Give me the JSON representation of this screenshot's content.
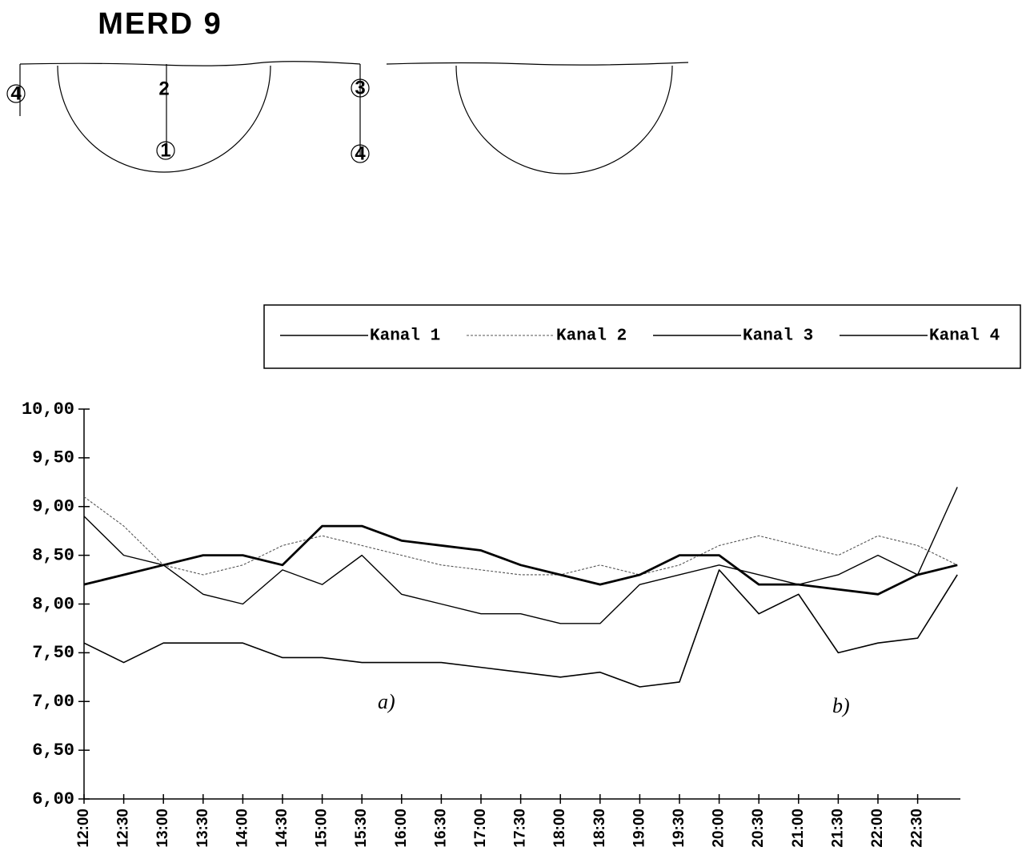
{
  "header": {
    "title": "MERD 9"
  },
  "diagram": {
    "labels": [
      "4",
      "2",
      "1",
      "3",
      "4"
    ]
  },
  "chart_data": {
    "type": "line",
    "categories": [
      "12:00",
      "12:30",
      "13:00",
      "13:30",
      "14:00",
      "14:30",
      "15:00",
      "15:30",
      "16:00",
      "16:30",
      "17:00",
      "17:30",
      "18:00",
      "18:30",
      "19:00",
      "19:30",
      "20:00",
      "20:30",
      "21:00",
      "21:30",
      "22:00",
      "22:30",
      null
    ],
    "series": [
      {
        "name": "Kanal 1",
        "color": "#000000",
        "values": [
          7.6,
          7.4,
          7.6,
          7.6,
          7.6,
          7.45,
          7.45,
          7.4,
          7.4,
          7.4,
          7.35,
          7.3,
          7.25,
          7.3,
          7.15,
          7.2,
          8.35,
          7.9,
          8.1,
          7.5,
          7.6,
          7.65,
          8.3
        ]
      },
      {
        "name": "Kanal 2",
        "color": "#555555",
        "values": [
          9.1,
          8.8,
          8.4,
          8.3,
          8.4,
          8.6,
          8.7,
          8.6,
          8.5,
          8.4,
          8.35,
          8.3,
          8.3,
          8.4,
          8.3,
          8.4,
          8.6,
          8.7,
          8.6,
          8.5,
          8.7,
          8.6,
          8.4
        ]
      },
      {
        "name": "Kanal 3",
        "color": "#000000",
        "values": [
          8.9,
          8.5,
          8.4,
          8.1,
          8.0,
          8.35,
          8.2,
          8.5,
          8.1,
          8.0,
          7.9,
          7.9,
          7.8,
          7.8,
          8.2,
          8.3,
          8.4,
          8.3,
          8.2,
          8.3,
          8.5,
          8.3,
          9.2
        ]
      },
      {
        "name": "Kanal 4",
        "color": "#000000",
        "values": [
          8.2,
          8.3,
          8.4,
          8.5,
          8.5,
          8.4,
          8.8,
          8.8,
          8.65,
          8.6,
          8.55,
          8.4,
          8.3,
          8.2,
          8.3,
          8.5,
          8.5,
          8.2,
          8.2,
          8.15,
          8.1,
          8.3,
          8.4
        ]
      }
    ],
    "ylim": [
      6,
      10
    ],
    "yticks": [
      {
        "value": 10,
        "label": "10,00"
      },
      {
        "value": 9.5,
        "label": "9,50"
      },
      {
        "value": 9,
        "label": "9,00"
      },
      {
        "value": 8.5,
        "label": "8,50"
      },
      {
        "value": 8,
        "label": "8,00"
      },
      {
        "value": 7.5,
        "label": "7,50"
      },
      {
        "value": 7,
        "label": "7,00"
      },
      {
        "value": 6.5,
        "label": "6,50"
      },
      {
        "value": 6,
        "label": "6,00"
      }
    ],
    "annotations": [
      "a)",
      "b)"
    ]
  }
}
